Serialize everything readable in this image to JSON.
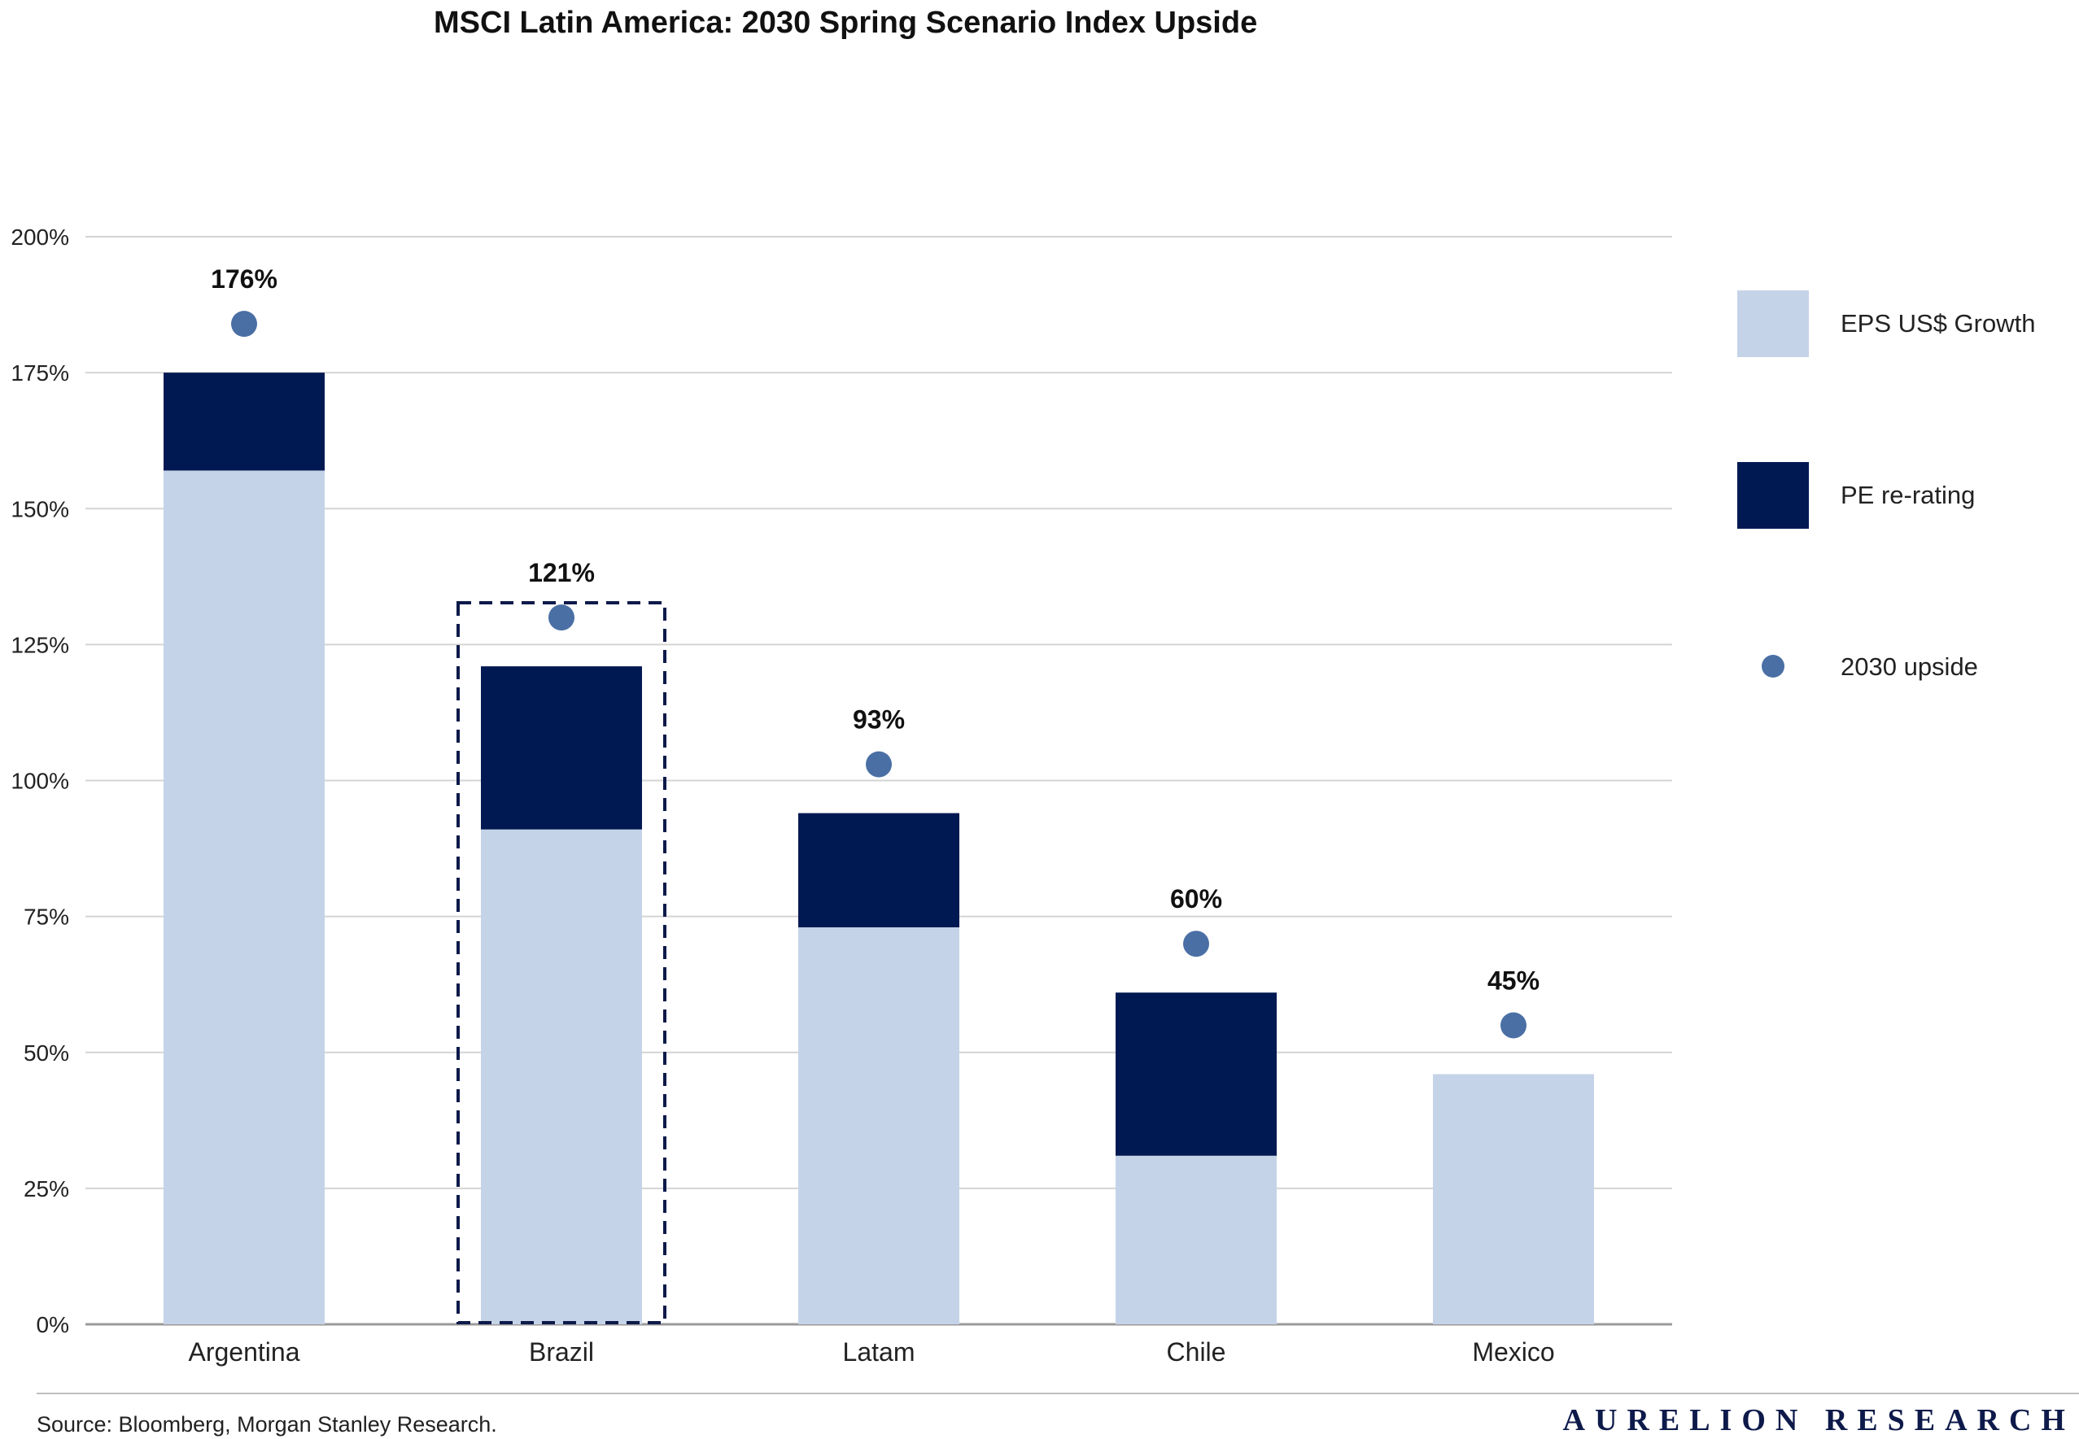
{
  "chart_data": {
    "type": "bar",
    "stacked": true,
    "title": "MSCI Latin America: 2030 Spring Scenario Index Upside",
    "categories": [
      "Argentina",
      "Brazil",
      "Latam",
      "Chile",
      "Mexico"
    ],
    "series": [
      {
        "name": "EPS US$ Growth",
        "kind": "bar",
        "color": "#c5d3e8",
        "values": [
          157,
          91,
          73,
          31,
          46
        ]
      },
      {
        "name": "PE re-rating",
        "kind": "bar",
        "color": "#001952",
        "values": [
          18,
          30,
          21,
          30,
          0
        ]
      },
      {
        "name": "2030 upside",
        "kind": "point",
        "color": "#4a6fa5",
        "values": [
          176,
          121,
          93,
          60,
          45
        ]
      }
    ],
    "data_labels": [
      "176%",
      "121%",
      "93%",
      "60%",
      "45%"
    ],
    "ylim": [
      0,
      200
    ],
    "yticks": [
      0,
      25,
      50,
      75,
      100,
      125,
      150,
      175,
      200
    ],
    "ytick_labels": [
      "0%",
      "25%",
      "50%",
      "75%",
      "100%",
      "125%",
      "150%",
      "175%",
      "200%"
    ],
    "highlighted_category": "Brazil",
    "grid": true,
    "legend_position": "right"
  },
  "footer": {
    "source": "Source: Bloomberg, Morgan Stanley Research.",
    "brand": "AURELION RESEARCH"
  }
}
